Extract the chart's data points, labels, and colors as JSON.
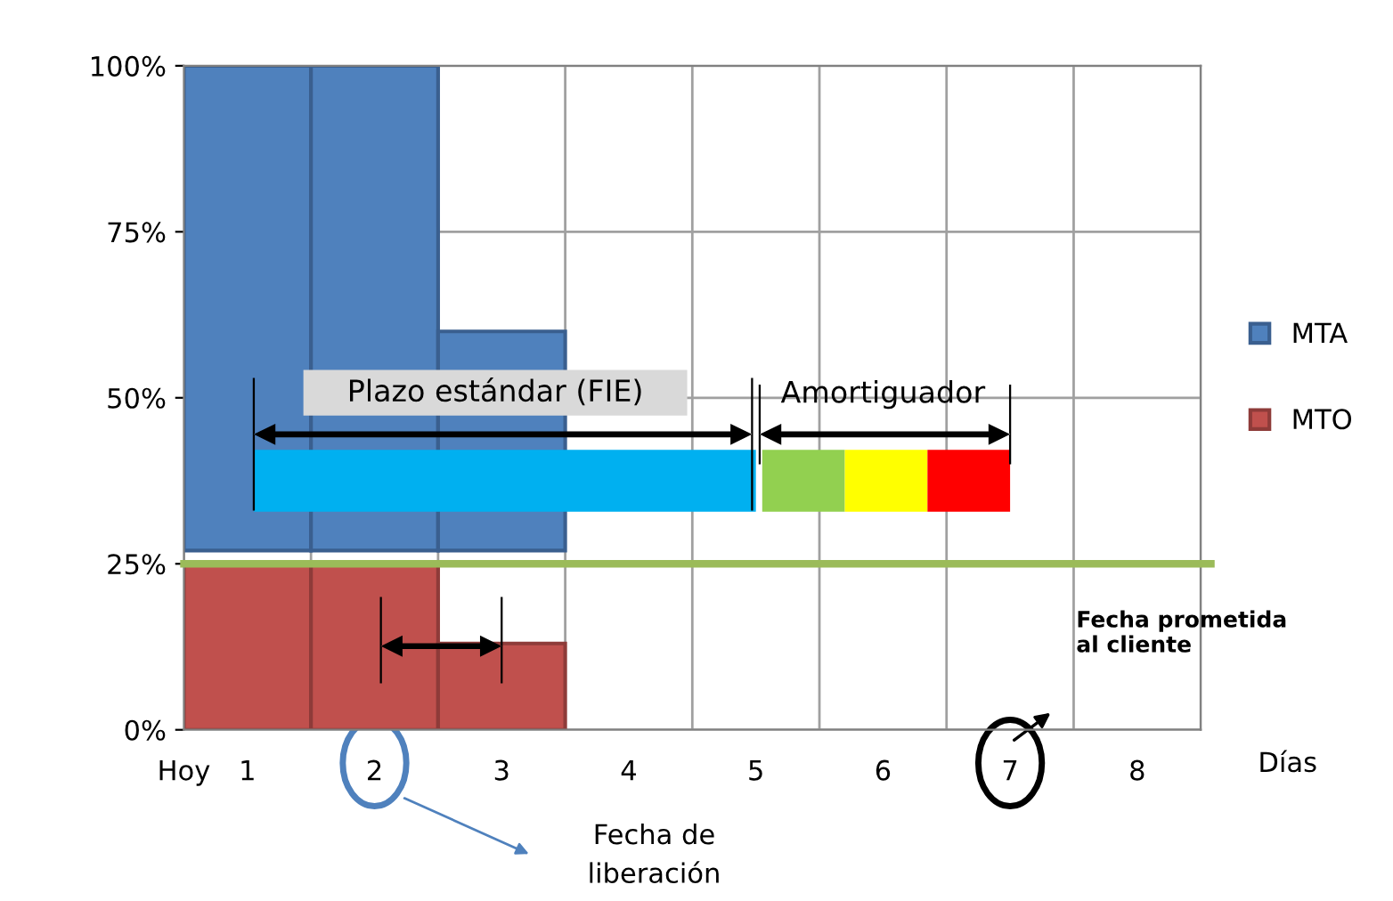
{
  "chart_data": {
    "type": "bar",
    "x": [
      1,
      2,
      3
    ],
    "series": [
      {
        "name": "MTA",
        "color": "#4f81bd",
        "base": [
          27,
          27,
          27
        ],
        "values": [
          73,
          73,
          33
        ]
      },
      {
        "name": "MTO",
        "color": "#c0504d",
        "values": [
          25,
          25,
          13
        ]
      },
      {
        "type": "line",
        "color": "#00b0f0",
        "x": [
          1.05,
          5.0
        ],
        "values": [
          37.5,
          37.5
        ]
      },
      {
        "type": "line",
        "color": "#92d050",
        "x": [
          5.05,
          5.7
        ],
        "values": [
          37.5,
          37.5
        ]
      },
      {
        "type": "line",
        "color": "#ffff00",
        "x": [
          5.7,
          6.35
        ],
        "values": [
          37.5,
          37.5
        ]
      },
      {
        "type": "line",
        "color": "#ff0000",
        "x": [
          6.35,
          7.0
        ],
        "values": [
          37.5,
          37.5
        ]
      }
    ],
    "xlim": [
      0.5,
      8.5
    ],
    "xticks": [
      {
        "value": 0.5,
        "label": "Hoy"
      },
      1,
      2,
      3,
      4,
      5,
      6,
      7,
      8
    ],
    "ylim": [
      0,
      100
    ],
    "yticks": [
      {
        "value": 0,
        "label": "0%"
      },
      {
        "value": 25,
        "label": "25%"
      },
      {
        "value": 50,
        "label": "50%"
      },
      {
        "value": 75,
        "label": "75%"
      },
      {
        "value": 100,
        "label": "100%"
      }
    ],
    "ref_lines": [
      {
        "axis": "y",
        "value": 25,
        "color": "#9bbb59"
      }
    ],
    "annotations": [
      "Días",
      "Plazo estándar (FIE)",
      "Amortiguador",
      "Fecha prometida\nal cliente",
      "Fecha de\nliberación"
    ],
    "grid": true,
    "legend": "right"
  }
}
